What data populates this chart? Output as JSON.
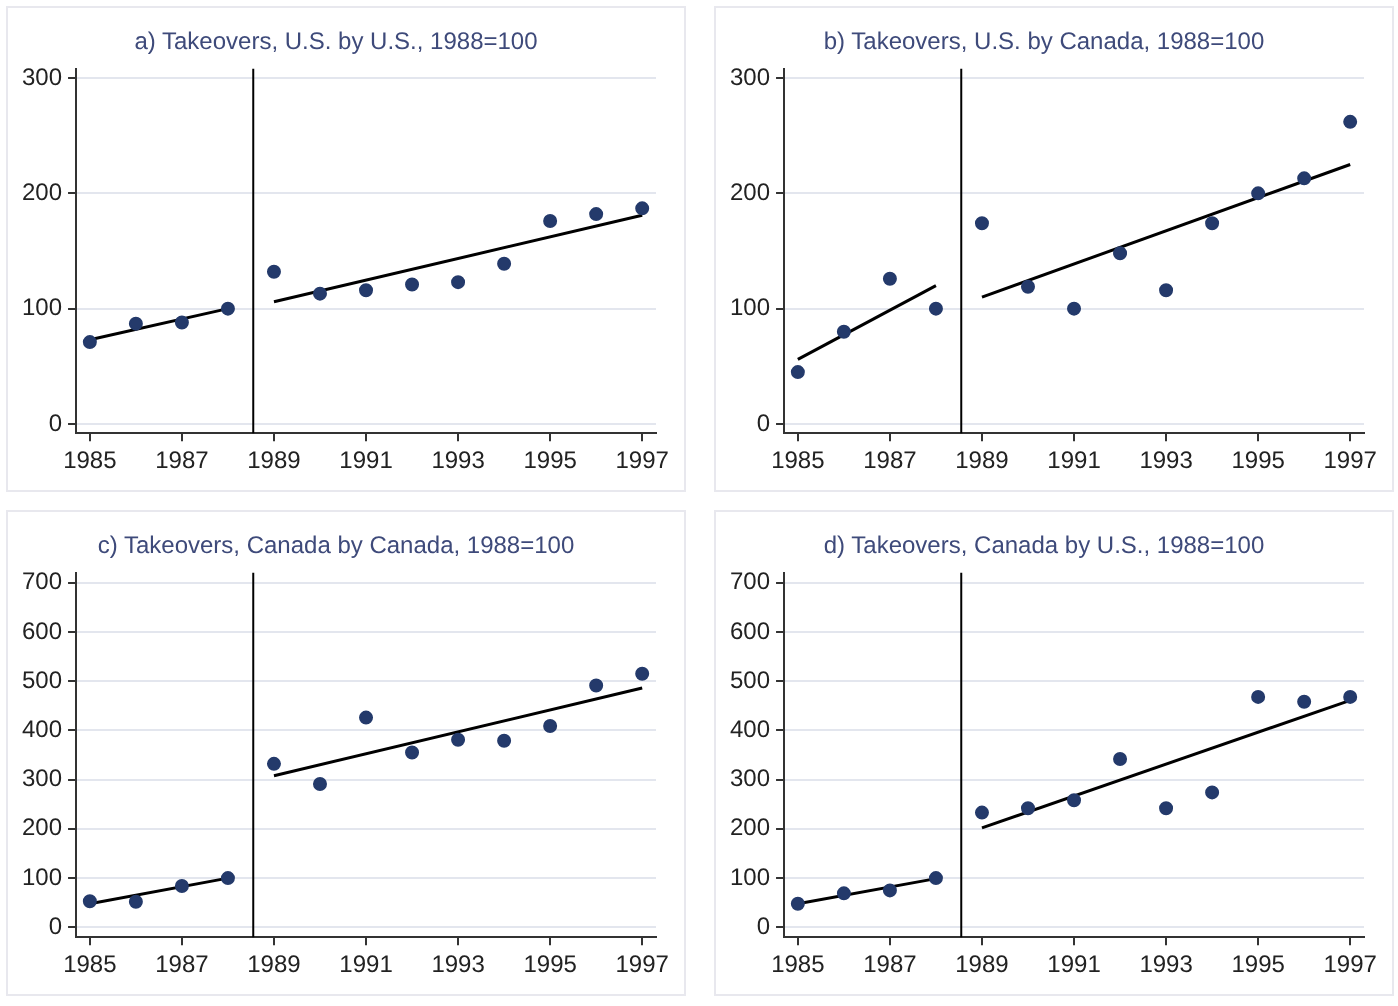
{
  "chart_data": [
    {
      "type": "scatter",
      "title": "a) Takeovers, U.S. by U.S., 1988=100",
      "x": [
        1985,
        1986,
        1987,
        1988,
        1989,
        1990,
        1991,
        1992,
        1993,
        1994,
        1995,
        1996,
        1997
      ],
      "xlim": [
        1984.7,
        1997.3
      ],
      "xticks": [
        1985,
        1987,
        1989,
        1991,
        1993,
        1995,
        1997
      ],
      "ylim": [
        -8,
        308
      ],
      "yticks": [
        0,
        100,
        200,
        300
      ],
      "grid": "y",
      "legend": false,
      "marker": "circle",
      "series": [
        {
          "color": "#243a6b",
          "values": [
            71,
            87,
            88,
            100,
            132,
            113,
            116,
            121,
            123,
            139,
            176,
            182,
            187
          ]
        },
        {
          "type": "line",
          "marker": "none",
          "color": "#000000",
          "x": [
            1985,
            1988
          ],
          "values": [
            73,
            100
          ]
        },
        {
          "type": "line",
          "marker": "none",
          "color": "#000000",
          "x": [
            1989,
            1997
          ],
          "values": [
            106,
            181
          ]
        }
      ],
      "ref_lines": [
        {
          "axis": "x",
          "value": 1988.55,
          "color": "#000000"
        }
      ]
    },
    {
      "type": "scatter",
      "title": "b) Takeovers, U.S. by Canada, 1988=100",
      "x": [
        1985,
        1986,
        1987,
        1988,
        1989,
        1990,
        1991,
        1992,
        1993,
        1994,
        1995,
        1996,
        1997
      ],
      "xlim": [
        1984.7,
        1997.3
      ],
      "xticks": [
        1985,
        1987,
        1989,
        1991,
        1993,
        1995,
        1997
      ],
      "ylim": [
        -8,
        308
      ],
      "yticks": [
        0,
        100,
        200,
        300
      ],
      "grid": "y",
      "legend": false,
      "marker": "circle",
      "series": [
        {
          "color": "#243a6b",
          "values": [
            45,
            80,
            126,
            100,
            174,
            119,
            100,
            148,
            116,
            174,
            200,
            213,
            262
          ]
        },
        {
          "type": "line",
          "marker": "none",
          "color": "#000000",
          "x": [
            1985,
            1988
          ],
          "values": [
            56,
            120
          ]
        },
        {
          "type": "line",
          "marker": "none",
          "color": "#000000",
          "x": [
            1989,
            1997
          ],
          "values": [
            110,
            225
          ]
        }
      ],
      "ref_lines": [
        {
          "axis": "x",
          "value": 1988.55,
          "color": "#000000"
        }
      ]
    },
    {
      "type": "scatter",
      "title": "c) Takeovers, Canada by Canada, 1988=100",
      "x": [
        1985,
        1986,
        1987,
        1988,
        1989,
        1990,
        1991,
        1992,
        1993,
        1994,
        1995,
        1996,
        1997
      ],
      "xlim": [
        1984.7,
        1997.3
      ],
      "xticks": [
        1985,
        1987,
        1989,
        1991,
        1993,
        1995,
        1997
      ],
      "ylim": [
        -20,
        720
      ],
      "yticks": [
        0,
        100,
        200,
        300,
        400,
        500,
        600,
        700
      ],
      "grid": "y",
      "legend": false,
      "marker": "circle",
      "series": [
        {
          "color": "#243a6b",
          "values": [
            53,
            52,
            84,
            100,
            332,
            291,
            426,
            355,
            381,
            379,
            409,
            491,
            515
          ]
        },
        {
          "type": "line",
          "marker": "none",
          "color": "#000000",
          "x": [
            1985,
            1988
          ],
          "values": [
            48,
            100
          ]
        },
        {
          "type": "line",
          "marker": "none",
          "color": "#000000",
          "x": [
            1989,
            1997
          ],
          "values": [
            308,
            486
          ]
        }
      ],
      "ref_lines": [
        {
          "axis": "x",
          "value": 1988.55,
          "color": "#000000"
        }
      ]
    },
    {
      "type": "scatter",
      "title": "d) Takeovers, Canada by U.S., 1988=100",
      "x": [
        1985,
        1986,
        1987,
        1988,
        1989,
        1990,
        1991,
        1992,
        1993,
        1994,
        1995,
        1996,
        1997
      ],
      "xlim": [
        1984.7,
        1997.3
      ],
      "xticks": [
        1985,
        1987,
        1989,
        1991,
        1993,
        1995,
        1997
      ],
      "ylim": [
        -20,
        720
      ],
      "yticks": [
        0,
        100,
        200,
        300,
        400,
        500,
        600,
        700
      ],
      "grid": "y",
      "legend": false,
      "marker": "circle",
      "series": [
        {
          "color": "#243a6b",
          "values": [
            48,
            69,
            75,
            100,
            233,
            242,
            258,
            342,
            242,
            274,
            468,
            458,
            468
          ]
        },
        {
          "type": "line",
          "marker": "none",
          "color": "#000000",
          "x": [
            1985,
            1988
          ],
          "values": [
            48,
            99
          ]
        },
        {
          "type": "line",
          "marker": "none",
          "color": "#000000",
          "x": [
            1989,
            1997
          ],
          "values": [
            202,
            461
          ]
        }
      ],
      "ref_lines": [
        {
          "axis": "x",
          "value": 1988.55,
          "color": "#000000"
        }
      ]
    }
  ]
}
